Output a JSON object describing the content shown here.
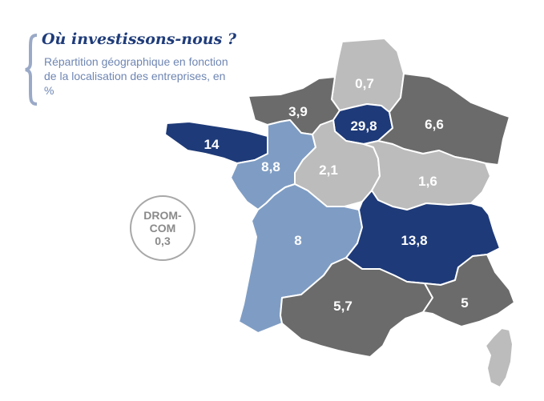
{
  "header": {
    "title": "Où investissons-nous ?",
    "subtitle": "Répartition géographique en fonction de la localisation des entreprises, en %"
  },
  "drom": {
    "line1": "DROM-",
    "line2": "COM",
    "value": "0,3"
  },
  "colors": {
    "dark_navy": "#1e3a78",
    "light_blue": "#7f9dc4",
    "dark_gray": "#6b6b6b",
    "light_gray": "#bcbcbc",
    "text_light": "#ffffff",
    "text_dark": "#ffffff"
  },
  "regions": [
    {
      "name": "Hauts-de-France",
      "label": "0,7",
      "color": "light_gray"
    },
    {
      "name": "Normandie",
      "label": "3,9",
      "color": "dark_gray"
    },
    {
      "name": "Île-de-France",
      "label": "29,8",
      "color": "dark_navy"
    },
    {
      "name": "Grand Est",
      "label": "6,6",
      "color": "dark_gray"
    },
    {
      "name": "Bretagne",
      "label": "14",
      "color": "dark_navy"
    },
    {
      "name": "Pays de la Loire",
      "label": "8,8",
      "color": "light_blue"
    },
    {
      "name": "Centre-Val de Loire",
      "label": "2,1",
      "color": "light_gray"
    },
    {
      "name": "Bourgogne-Franche-Comté",
      "label": "1,6",
      "color": "light_gray"
    },
    {
      "name": "Nouvelle-Aquitaine",
      "label": "8",
      "color": "light_blue"
    },
    {
      "name": "Auvergne-Rhône-Alpes",
      "label": "13,8",
      "color": "dark_navy"
    },
    {
      "name": "Occitanie",
      "label": "5,7",
      "color": "dark_gray"
    },
    {
      "name": "Provence-Alpes-Côte d'Azur",
      "label": "5",
      "color": "dark_gray"
    },
    {
      "name": "Corse",
      "label": "",
      "color": "light_gray"
    }
  ]
}
